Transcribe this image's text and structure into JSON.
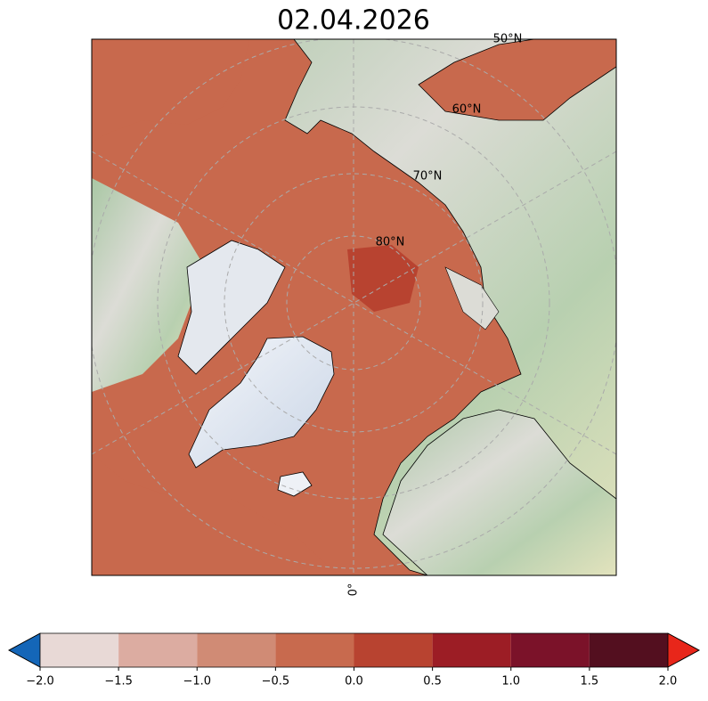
{
  "title": "02.04.2026",
  "map": {
    "latitude_labels": [
      "50°N",
      "60°N",
      "70°N",
      "80°N"
    ],
    "longitude_label": "0°"
  },
  "colorbar": {
    "ticks": [
      {
        "value": -2.0,
        "label": "−2.0"
      },
      {
        "value": -1.5,
        "label": "−1.5"
      },
      {
        "value": -1.0,
        "label": "−1.0"
      },
      {
        "value": -0.5,
        "label": "−0.5"
      },
      {
        "value": 0.0,
        "label": "0.0"
      },
      {
        "value": 0.5,
        "label": "0.5"
      },
      {
        "value": 1.0,
        "label": "1.0"
      },
      {
        "value": 1.5,
        "label": "1.5"
      },
      {
        "value": 2.0,
        "label": "2.0"
      }
    ],
    "colors": [
      "#e8d9d6",
      "#dcaca1",
      "#d08b75",
      "#c86a4e",
      "#b84330",
      "#9c1d25",
      "#7b1229",
      "#530f1f"
    ],
    "under_color": "#1466b8",
    "over_color": "#e8261a"
  }
}
